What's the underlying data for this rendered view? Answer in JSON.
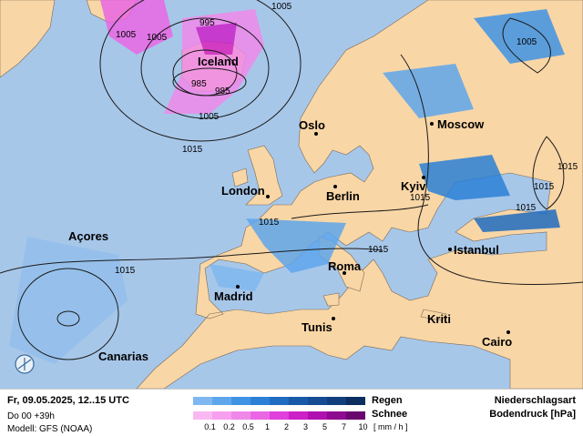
{
  "map": {
    "colors": {
      "ocean": "#a7c7e9",
      "land": "#f9d6a6",
      "isobar": "#1a1a1a"
    },
    "cities": [
      {
        "name": "Iceland"
      },
      {
        "name": "Oslo"
      },
      {
        "name": "Moscow"
      },
      {
        "name": "Kyiv"
      },
      {
        "name": "London"
      },
      {
        "name": "Berlin"
      },
      {
        "name": "Açores"
      },
      {
        "name": "Istanbul"
      },
      {
        "name": "Roma"
      },
      {
        "name": "Madrid"
      },
      {
        "name": "Tunis"
      },
      {
        "name": "Kriti"
      },
      {
        "name": "Cairo"
      },
      {
        "name": "Canarias"
      }
    ],
    "isobar_labels": [
      "995",
      "1005",
      "1005",
      "1005",
      "985",
      "985",
      "1005",
      "1015",
      "1015",
      "1015",
      "1015",
      "1015",
      "1005",
      "1015",
      "1015",
      "1015"
    ]
  },
  "legend": {
    "date": "Fr, 09.05.2025, 12..15 UTC",
    "run": "Do 00 +39h",
    "model": "Modell: GFS (NOAA)",
    "rain_label": "Regen",
    "snow_label": "Schnee",
    "unit": "[ mm / h ]",
    "ticks": [
      "0.1",
      "0.2",
      "0.5",
      "1",
      "2",
      "3",
      "5",
      "7",
      "10"
    ],
    "rain_colors": [
      "#7fb8f0",
      "#5ea6ec",
      "#3f93e4",
      "#2a80d6",
      "#1f6cc0",
      "#195aa8",
      "#154c93",
      "#113e7c",
      "#0c2f60"
    ],
    "snow_colors": [
      "#f9b8f2",
      "#f7a0ef",
      "#f088ea",
      "#ea66e4",
      "#e040db",
      "#cc20c8",
      "#b010b0",
      "#8e0a90",
      "#6a0670"
    ],
    "title1": "Niederschlagsart",
    "title2": "Bodendruck [hPa]"
  }
}
